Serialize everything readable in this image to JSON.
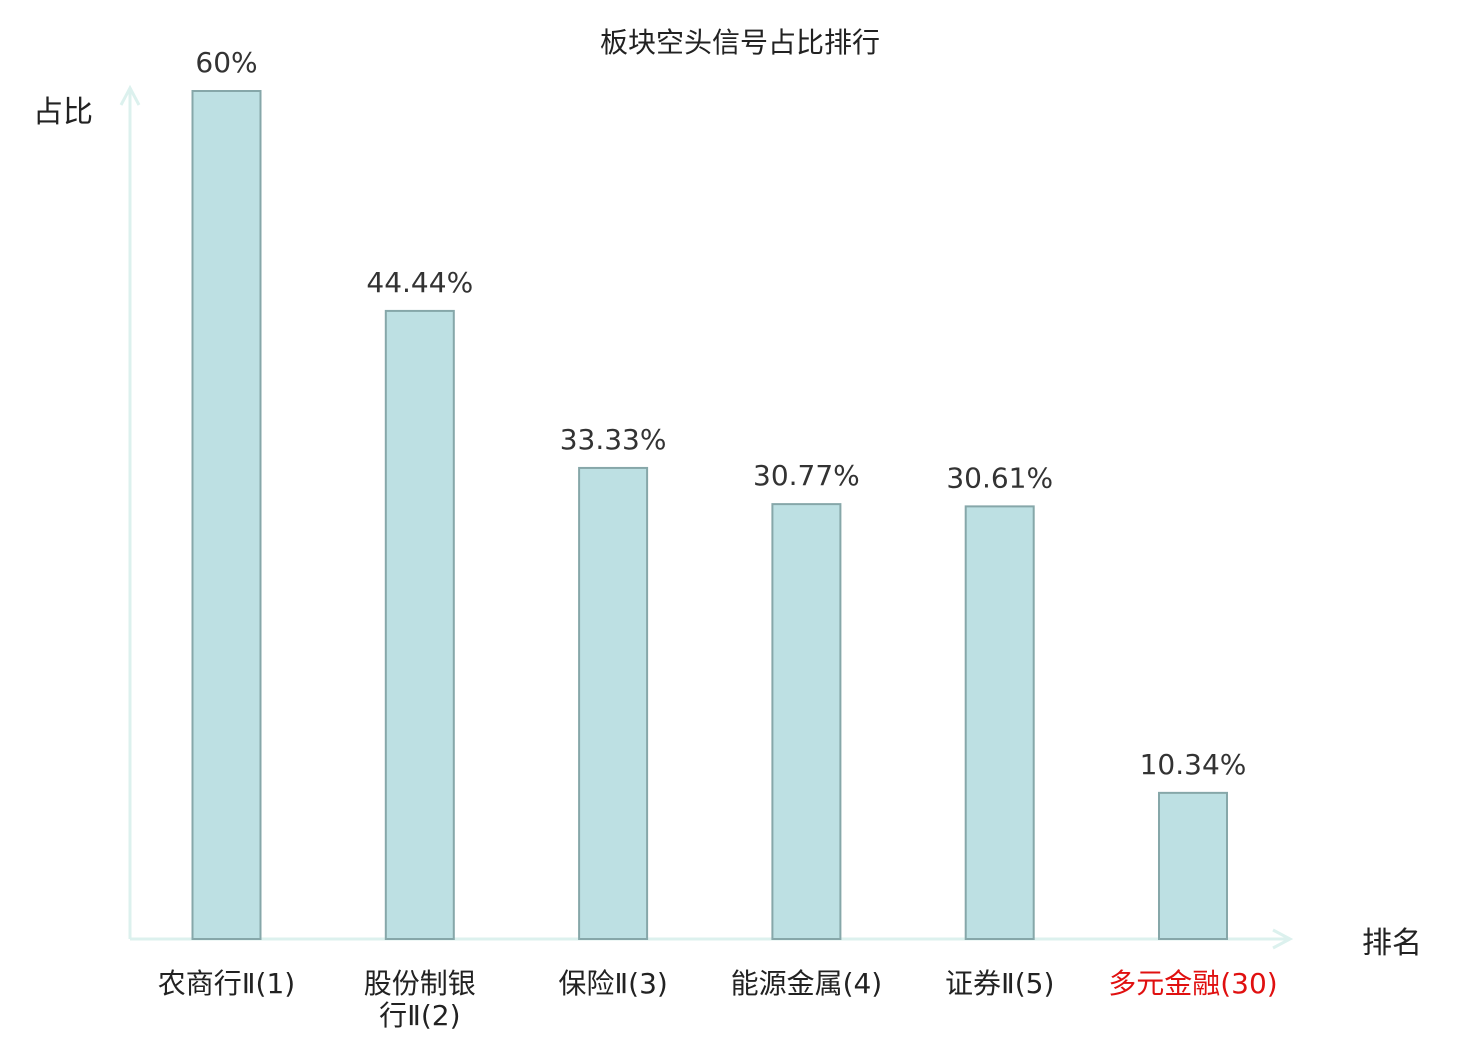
{
  "chart_data": {
    "type": "bar",
    "title": "板块空头信号占比排行",
    "ylabel": "占比",
    "xlabel": "排名",
    "ylim": [
      0,
      60
    ],
    "grid": false,
    "categories": [
      {
        "lines": [
          "农商行Ⅱ(1)"
        ],
        "highlight": false
      },
      {
        "lines": [
          "股份制银",
          "行Ⅱ(2)"
        ],
        "highlight": false
      },
      {
        "lines": [
          "保险Ⅱ(3)"
        ],
        "highlight": false
      },
      {
        "lines": [
          "能源金属(4)"
        ],
        "highlight": false
      },
      {
        "lines": [
          "证券Ⅱ(5)"
        ],
        "highlight": false
      },
      {
        "lines": [
          "多元金融(30)"
        ],
        "highlight": true
      }
    ],
    "values": [
      60,
      44.44,
      33.33,
      30.77,
      30.61,
      10.34
    ],
    "value_labels": [
      "60%",
      "44.44%",
      "33.33%",
      "30.77%",
      "30.61%",
      "10.34%"
    ]
  },
  "colors": {
    "bar_fill": "#bde0e3",
    "bar_stroke": "#86a7a9",
    "axis": "#dcf1ee",
    "text": "#222222",
    "value_text": "#333333",
    "highlight": "#e01010"
  }
}
